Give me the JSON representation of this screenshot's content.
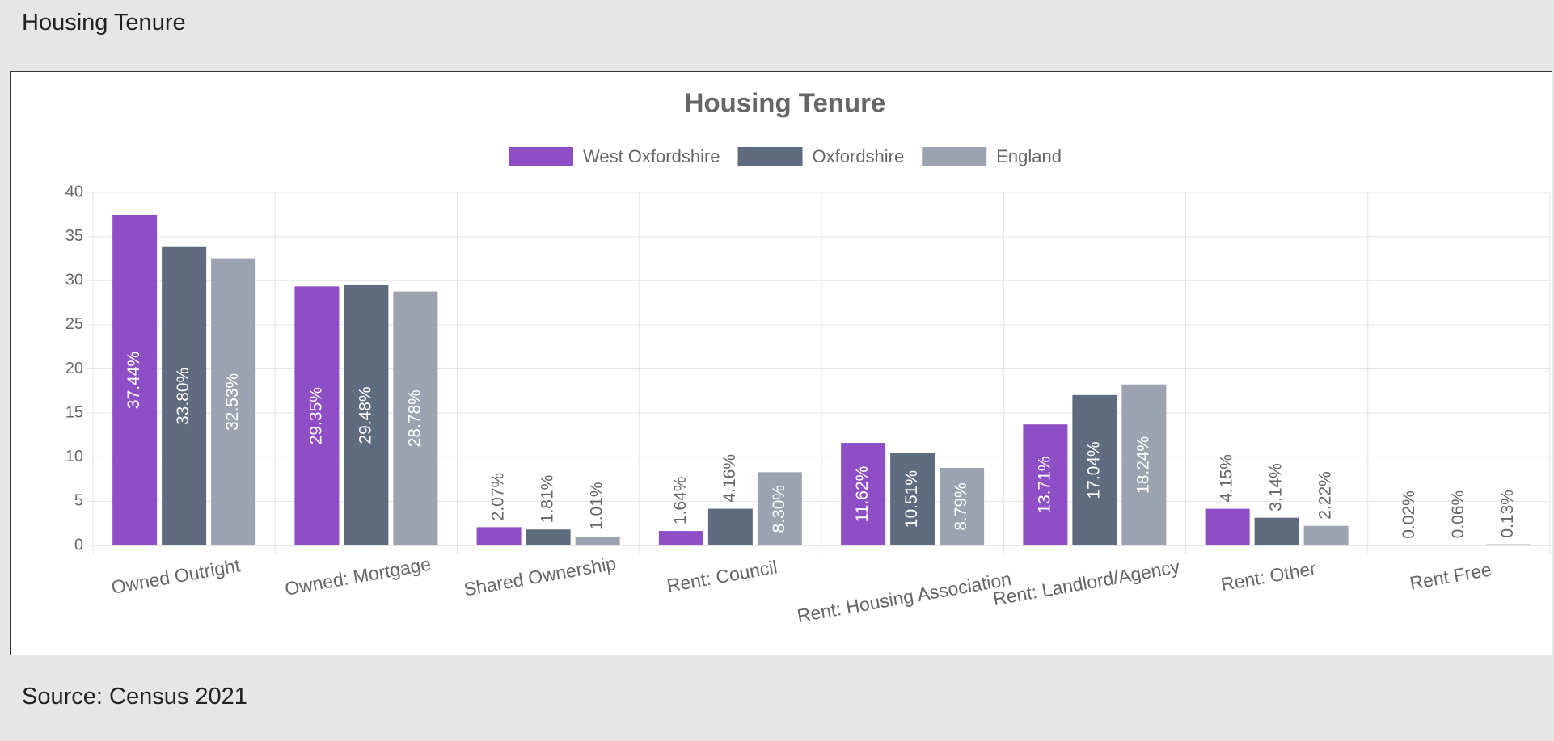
{
  "header": {
    "title": "Housing Tenure"
  },
  "chart_data": {
    "type": "bar",
    "title": "Housing Tenure",
    "categories": [
      "Owned Outright",
      "Owned: Mortgage",
      "Shared Ownership",
      "Rent: Council",
      "Rent: Housing Association",
      "Rent: Landlord/Agency",
      "Rent: Other",
      "Rent Free"
    ],
    "series": [
      {
        "name": "West Oxfordshire",
        "color": "#8e4ec6",
        "values": [
          37.44,
          29.35,
          2.07,
          1.64,
          11.62,
          13.71,
          4.15,
          0.02
        ],
        "value_labels": [
          "37.44%",
          "29.35%",
          "2.07%",
          "1.64%",
          "11.62%",
          "13.71%",
          "4.15%",
          "0.02%"
        ]
      },
      {
        "name": "Oxfordshire",
        "color": "#5f6b7e",
        "values": [
          33.8,
          29.48,
          1.81,
          4.16,
          10.51,
          17.04,
          3.14,
          0.06
        ],
        "value_labels": [
          "33.80%",
          "29.48%",
          "1.81%",
          "4.16%",
          "10.51%",
          "17.04%",
          "3.14%",
          "0.06%"
        ]
      },
      {
        "name": "England",
        "color": "#9ca3b0",
        "values": [
          32.53,
          28.78,
          1.01,
          8.3,
          8.79,
          18.24,
          2.22,
          0.13
        ],
        "value_labels": [
          "32.53%",
          "28.78%",
          "1.01%",
          "8.30%",
          "8.79%",
          "18.24%",
          "2.22%",
          "0.13%"
        ]
      }
    ],
    "ylim": [
      0,
      40
    ],
    "yticks": [
      0,
      5,
      10,
      15,
      20,
      25,
      30,
      35,
      40
    ],
    "grid": true,
    "legend": "top"
  },
  "footer": {
    "source": "Source: Census 2021"
  }
}
